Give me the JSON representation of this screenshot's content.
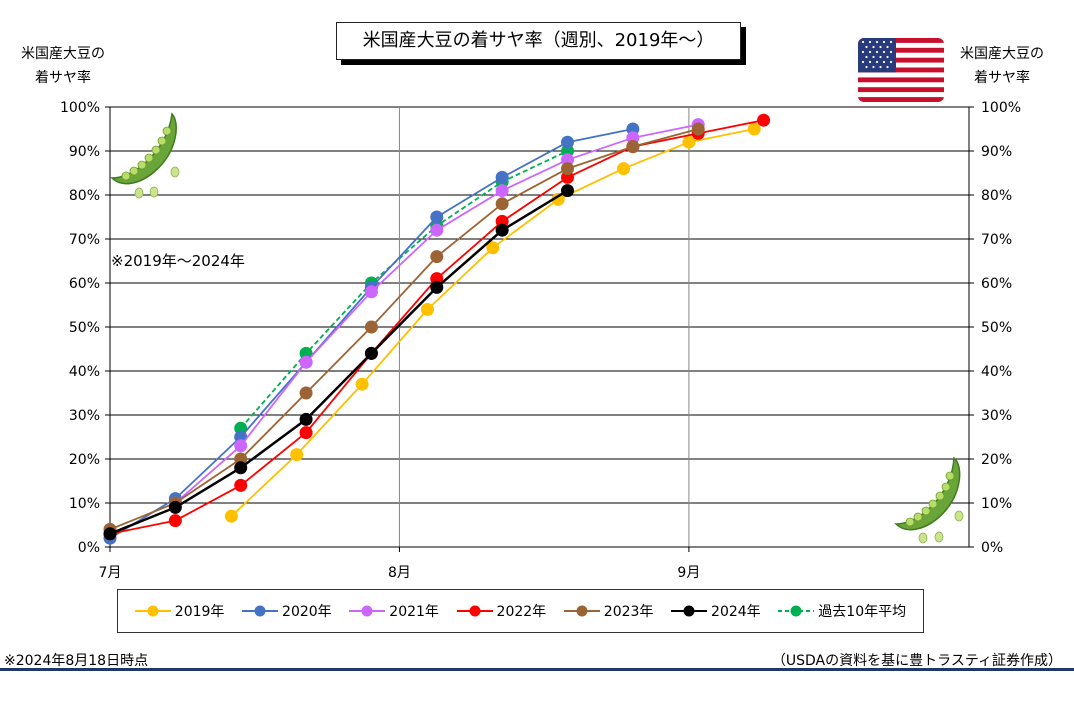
{
  "title": "米国産大豆の着サヤ率（週別、2019年～）",
  "left_axis_title": [
    "米国産大豆の",
    "着サヤ率"
  ],
  "right_axis_title": [
    "米国産大豆の",
    "着サヤ率"
  ],
  "period_note": "※2019年～2024年",
  "as_of_note": "※2024年8月18日時点",
  "source_note": "（USDAの資料を基に豊トラスティ証券作成）",
  "flag_icon": "us-flag-icon",
  "decoration_icon": "edamame-icon",
  "chart_data": {
    "type": "line",
    "x_axis": {
      "type": "date",
      "ticks": [
        "7月",
        "8月",
        "9月"
      ],
      "tick_dates": [
        "07-01",
        "08-01",
        "09-01"
      ],
      "range": [
        "07-01",
        "10-01"
      ]
    },
    "y_axis": {
      "ticks": [
        "0%",
        "10%",
        "20%",
        "30%",
        "40%",
        "50%",
        "60%",
        "70%",
        "80%",
        "90%",
        "100%"
      ],
      "range": [
        0,
        100
      ],
      "unit": "%"
    },
    "grid": true,
    "legend_position": "bottom",
    "series": [
      {
        "name": "2019年",
        "color": "#FFC000",
        "dashed": false,
        "points": [
          [
            "07-14",
            7
          ],
          [
            "07-21",
            21
          ],
          [
            "07-28",
            37
          ],
          [
            "08-04",
            54
          ],
          [
            "08-11",
            68
          ],
          [
            "08-18",
            79
          ],
          [
            "08-25",
            86
          ],
          [
            "09-01",
            92
          ],
          [
            "09-08",
            95
          ]
        ]
      },
      {
        "name": "2020年",
        "color": "#4472C4",
        "dashed": false,
        "points": [
          [
            "07-01",
            2
          ],
          [
            "07-08",
            11
          ],
          [
            "07-15",
            25
          ],
          [
            "07-22",
            42
          ],
          [
            "07-29",
            59
          ],
          [
            "08-05",
            75
          ],
          [
            "08-12",
            84
          ],
          [
            "08-19",
            92
          ],
          [
            "08-26",
            95
          ]
        ]
      },
      {
        "name": "2021年",
        "color": "#CC66FF",
        "dashed": false,
        "points": [
          [
            "07-08",
            10
          ],
          [
            "07-15",
            23
          ],
          [
            "07-22",
            42
          ],
          [
            "07-29",
            58
          ],
          [
            "08-05",
            72
          ],
          [
            "08-12",
            81
          ],
          [
            "08-19",
            88
          ],
          [
            "08-26",
            93
          ],
          [
            "09-02",
            96
          ]
        ]
      },
      {
        "name": "2022年",
        "color": "#FF0000",
        "dashed": false,
        "points": [
          [
            "07-01",
            3
          ],
          [
            "07-08",
            6
          ],
          [
            "07-15",
            14
          ],
          [
            "07-22",
            26
          ],
          [
            "07-29",
            44
          ],
          [
            "08-05",
            61
          ],
          [
            "08-12",
            74
          ],
          [
            "08-19",
            84
          ],
          [
            "08-26",
            91
          ],
          [
            "09-02",
            94
          ],
          [
            "09-09",
            97
          ]
        ]
      },
      {
        "name": "2023年",
        "color": "#9C6435",
        "dashed": false,
        "points": [
          [
            "07-01",
            4
          ],
          [
            "07-08",
            10
          ],
          [
            "07-15",
            20
          ],
          [
            "07-22",
            35
          ],
          [
            "07-29",
            50
          ],
          [
            "08-05",
            66
          ],
          [
            "08-12",
            78
          ],
          [
            "08-19",
            86
          ],
          [
            "08-26",
            91
          ],
          [
            "09-02",
            95
          ]
        ]
      },
      {
        "name": "2024年",
        "color": "#000000",
        "dashed": false,
        "points": [
          [
            "07-01",
            3
          ],
          [
            "07-08",
            9
          ],
          [
            "07-15",
            18
          ],
          [
            "07-22",
            29
          ],
          [
            "07-29",
            44
          ],
          [
            "08-05",
            59
          ],
          [
            "08-12",
            72
          ],
          [
            "08-19",
            81
          ]
        ]
      },
      {
        "name": "過去10年平均",
        "color": "#00B050",
        "dashed": true,
        "points": [
          [
            "07-15",
            27
          ],
          [
            "07-22",
            44
          ],
          [
            "07-29",
            60
          ],
          [
            "08-05",
            73
          ],
          [
            "08-12",
            83
          ],
          [
            "08-19",
            90
          ]
        ]
      }
    ]
  }
}
